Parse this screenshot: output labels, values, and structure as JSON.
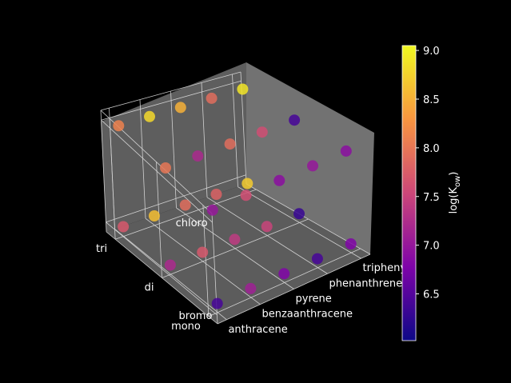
{
  "chart_data": {
    "type": "scatter",
    "title": "",
    "axes": {
      "x": {
        "ticks": [
          "anthracene",
          "benzaanthracene",
          "pyrene",
          "phenanthrene",
          "triphenyl"
        ]
      },
      "y": {
        "ticks": [
          "mono",
          "di",
          "tri"
        ]
      },
      "z": {
        "ticks": [
          "bromo",
          "chloro"
        ]
      }
    },
    "colorbar": {
      "label": "log(K",
      "label_sub": "ow",
      "label_end": ")",
      "range": [
        6.02,
        9.05
      ],
      "ticks": [
        "6.5",
        "7.0",
        "7.5",
        "8.0",
        "8.5",
        "9.0"
      ],
      "colormap": "plasma"
    },
    "points": [
      {
        "x": "anthracene",
        "y": "mono",
        "z": "bromo",
        "value": 6.4
      },
      {
        "x": "anthracene",
        "y": "di",
        "z": "bromo",
        "value": 7.2
      },
      {
        "x": "anthracene",
        "y": "tri",
        "z": "bromo",
        "value": 7.7
      },
      {
        "x": "anthracene",
        "y": "mono",
        "z": "chloro",
        "value": 7.0
      },
      {
        "x": "anthracene",
        "y": "di",
        "z": "chloro",
        "value": 8.0
      },
      {
        "x": "anthracene",
        "y": "tri",
        "z": "chloro",
        "value": 8.1
      },
      {
        "x": "benzaanthracene",
        "y": "mono",
        "z": "bromo",
        "value": 7.1
      },
      {
        "x": "benzaanthracene",
        "y": "di",
        "z": "bromo",
        "value": 7.7
      },
      {
        "x": "benzaanthracene",
        "y": "tri",
        "z": "bromo",
        "value": 8.6
      },
      {
        "x": "benzaanthracene",
        "y": "mono",
        "z": "chloro",
        "value": 7.6
      },
      {
        "x": "benzaanthracene",
        "y": "di",
        "z": "chloro",
        "value": 7.2
      },
      {
        "x": "benzaanthracene",
        "y": "tri",
        "z": "chloro",
        "value": 8.8
      },
      {
        "x": "pyrene",
        "y": "mono",
        "z": "bromo",
        "value": 6.8
      },
      {
        "x": "pyrene",
        "y": "di",
        "z": "bromo",
        "value": 7.4
      },
      {
        "x": "pyrene",
        "y": "tri",
        "z": "bromo",
        "value": 7.9
      },
      {
        "x": "pyrene",
        "y": "mono",
        "z": "chloro",
        "value": 6.9
      },
      {
        "x": "pyrene",
        "y": "di",
        "z": "chloro",
        "value": 7.9
      },
      {
        "x": "pyrene",
        "y": "tri",
        "z": "chloro",
        "value": 8.5
      },
      {
        "x": "phenanthrene",
        "y": "mono",
        "z": "bromo",
        "value": 6.4
      },
      {
        "x": "phenanthrene",
        "y": "di",
        "z": "bromo",
        "value": 7.5
      },
      {
        "x": "phenanthrene",
        "y": "tri",
        "z": "bromo",
        "value": 7.8
      },
      {
        "x": "phenanthrene",
        "y": "mono",
        "z": "chloro",
        "value": 7.0
      },
      {
        "x": "phenanthrene",
        "y": "di",
        "z": "chloro",
        "value": 7.6
      },
      {
        "x": "phenanthrene",
        "y": "tri",
        "z": "chloro",
        "value": 7.9
      },
      {
        "x": "triphenyl",
        "y": "mono",
        "z": "bromo",
        "value": 6.8
      },
      {
        "x": "triphenyl",
        "y": "di",
        "z": "bromo",
        "value": 6.3
      },
      {
        "x": "triphenyl",
        "y": "tri",
        "z": "bromo",
        "value": 8.7
      },
      {
        "x": "triphenyl",
        "y": "mono",
        "z": "chloro",
        "value": 6.9
      },
      {
        "x": "triphenyl",
        "y": "di",
        "z": "chloro",
        "value": 6.4
      },
      {
        "x": "triphenyl",
        "y": "tri",
        "z": "chloro",
        "value": 8.9
      }
    ]
  }
}
